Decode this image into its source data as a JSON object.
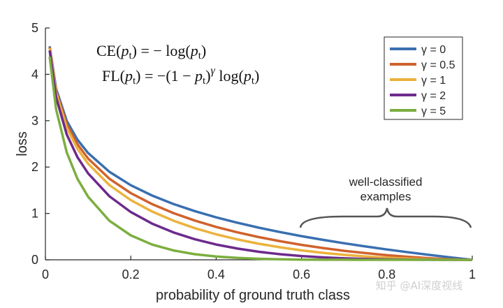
{
  "chart_data": {
    "type": "line",
    "xlabel": "probability of ground truth class",
    "ylabel": "loss",
    "xlim": [
      0,
      1
    ],
    "ylim": [
      0,
      5
    ],
    "xticks": [
      "0",
      "0.2",
      "0.4",
      "0.6",
      "0.8",
      "1"
    ],
    "yticks": [
      "0",
      "1",
      "2",
      "3",
      "4",
      "5"
    ],
    "grid": false,
    "legend_position": "top-right",
    "x": [
      0.01,
      0.025,
      0.05,
      0.075,
      0.1,
      0.15,
      0.2,
      0.25,
      0.3,
      0.35,
      0.4,
      0.45,
      0.5,
      0.55,
      0.6,
      0.65,
      0.7,
      0.75,
      0.8,
      0.85,
      0.9,
      0.95,
      1.0
    ],
    "series": [
      {
        "name": "γ = 0",
        "gamma": 0,
        "color": "#3a6fb0",
        "values": [
          4.605,
          3.689,
          2.996,
          2.59,
          2.303,
          1.897,
          1.609,
          1.386,
          1.204,
          1.05,
          0.916,
          0.799,
          0.693,
          0.598,
          0.511,
          0.431,
          0.357,
          0.288,
          0.223,
          0.163,
          0.105,
          0.051,
          0.0
        ]
      },
      {
        "name": "γ = 0.5",
        "gamma": 0.5,
        "color": "#d0622c",
        "values": [
          4.582,
          3.643,
          2.92,
          2.493,
          2.184,
          1.749,
          1.439,
          1.2,
          1.007,
          0.847,
          0.71,
          0.592,
          0.49,
          0.401,
          0.323,
          0.254,
          0.195,
          0.144,
          0.1,
          0.063,
          0.033,
          0.011,
          0.0
        ]
      },
      {
        "name": "γ = 1",
        "gamma": 1,
        "color": "#ecb23d",
        "values": [
          4.559,
          3.597,
          2.846,
          2.396,
          2.072,
          1.612,
          1.288,
          1.04,
          0.843,
          0.682,
          0.55,
          0.44,
          0.347,
          0.269,
          0.204,
          0.151,
          0.107,
          0.072,
          0.045,
          0.024,
          0.011,
          0.003,
          0.0
        ]
      },
      {
        "name": "γ = 2",
        "gamma": 2,
        "color": "#6d2a8c",
        "values": [
          4.514,
          3.508,
          2.704,
          2.216,
          1.865,
          1.371,
          1.03,
          0.78,
          0.59,
          0.443,
          0.33,
          0.242,
          0.173,
          0.121,
          0.082,
          0.053,
          0.032,
          0.018,
          0.009,
          0.004,
          0.001,
          0.0,
          0.0
        ]
      },
      {
        "name": "γ = 5",
        "gamma": 5,
        "color": "#7cae3f",
        "values": [
          4.38,
          3.247,
          2.318,
          1.749,
          1.36,
          0.842,
          0.527,
          0.329,
          0.202,
          0.121,
          0.071,
          0.04,
          0.022,
          0.011,
          0.005,
          0.002,
          0.001,
          0.0,
          0.0,
          0.0,
          0.0,
          0.0,
          0.0
        ]
      }
    ],
    "annotations": {
      "formula_ce": "CE(pt) = − log(pt)",
      "formula_fl": "FL(pt) = −(1 − pt)γ log(pt)",
      "well_classified_line1": "well-classified",
      "well_classified_line2": "examples"
    }
  },
  "watermark": "知乎 @AI深度视线"
}
